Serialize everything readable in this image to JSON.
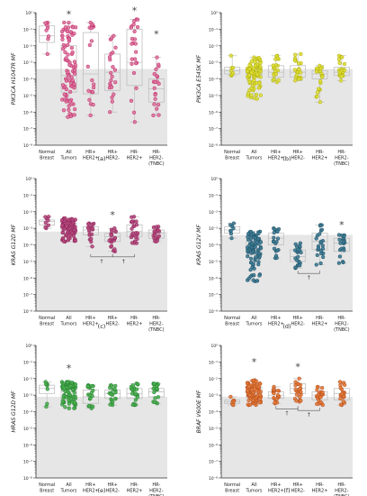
{
  "categories": [
    [
      "Normal",
      "Breast"
    ],
    [
      "All",
      "Tumors"
    ],
    [
      "HR+",
      "HER2+"
    ],
    [
      "HR+",
      "HER2-"
    ],
    [
      "HR-",
      "HER2+"
    ],
    [
      "HR-",
      "HER2-",
      "(TNBC)"
    ]
  ],
  "y_tick_labels": [
    "10⁻⁸",
    "10⁻⁷",
    "10⁻⁶",
    "10⁻⁵",
    "10⁻⁴",
    "10⁻³",
    "10⁻²",
    "10⁻¹",
    "10⁰"
  ],
  "marker_labels": {
    "star": "*",
    "dagger": "†"
  },
  "colors": {
    "shade": "#e6e6e6",
    "box": "#bfbfbf",
    "axis": "#333333",
    "text": "#222222"
  },
  "chart_data": [
    {
      "type": "scatter",
      "panel": "(a)",
      "ylabel": "PIK3CA H1047R MF",
      "ylog": true,
      "ylim": [
        1e-08,
        1
      ],
      "color": "#c2185b",
      "fill": "#d9769e",
      "shade_top": -3.4,
      "categories": [
        "Normal Breast",
        "All Tumors",
        "HR+ HER2+",
        "HR+ HER2-",
        "HR- HER2+",
        "HR- HER2- (TNBC)"
      ],
      "boxes_log10": [
        [
          -2.5,
          -1.8,
          -1.4,
          -0.8,
          -0.6,
          -0.4
        ],
        [
          -6.3,
          -4.8,
          -3.8,
          -2.0,
          -0.6,
          -0.4
        ],
        [
          -6.2,
          -4.9,
          -3.7,
          -1.2,
          -0.6,
          -0.4
        ],
        [
          -6.0,
          -4.7,
          -3.6,
          -2.5,
          -1.4,
          -0.6
        ],
        [
          -6.6,
          -4.4,
          -3.0,
          -1.0,
          -0.4,
          -0.2
        ],
        [
          -6.2,
          -5.4,
          -4.6,
          -4.0,
          -2.7,
          -1.6
        ]
      ],
      "n_points": [
        9,
        90,
        20,
        22,
        24,
        20
      ],
      "stars": [
        1,
        4,
        5
      ],
      "daggers": []
    },
    {
      "type": "scatter",
      "panel": "(b)",
      "ylabel": "PIK3CA E545K MF",
      "ylog": true,
      "ylim": [
        1e-08,
        1
      ],
      "color": "#a8a800",
      "fill": "#dede3a",
      "shade_top": -3.4,
      "categories": [
        "Normal Breast",
        "All Tumors",
        "HR+ HER2+",
        "HR+ HER2-",
        "HR- HER2+",
        "HR- HER2- (TNBC)"
      ],
      "boxes_log10": [
        [
          -3.8,
          -3.7,
          -3.5,
          -3.3,
          -2.6,
          -2.1
        ],
        [
          -5.2,
          -3.9,
          -3.7,
          -3.3,
          -2.7,
          -0.3
        ],
        [
          -4.2,
          -3.9,
          -3.6,
          -3.2,
          -2.6,
          -0.3
        ],
        [
          -4.1,
          -3.9,
          -3.6,
          -3.2,
          -2.5,
          -0.3
        ],
        [
          -5.4,
          -4.0,
          -3.7,
          -3.5,
          -3.2,
          -0.9
        ],
        [
          -4.1,
          -3.8,
          -3.6,
          -3.3,
          -2.6,
          -1.6
        ]
      ],
      "n_points": [
        8,
        90,
        20,
        22,
        24,
        20
      ],
      "stars": [],
      "daggers": []
    },
    {
      "type": "scatter",
      "panel": "(c)",
      "ylabel": "KRAS G12D MF",
      "ylog": true,
      "ylim": [
        1e-08,
        1
      ],
      "color": "#8e1e55",
      "fill": "#b24a7e",
      "shade_top": -3.2,
      "categories": [
        "Normal Breast",
        "All Tumors",
        "HR+ HER2+",
        "HR+ HER2-",
        "HR- HER2+",
        "HR- HER2- (TNBC)"
      ],
      "boxes_log10": [
        [
          -3.0,
          -2.8,
          -2.6,
          -2.5,
          -2.3,
          -2.1
        ],
        [
          -3.8,
          -3.3,
          -3.0,
          -2.7,
          -2.4,
          -0.8
        ],
        [
          -4.1,
          -3.4,
          -3.1,
          -2.9,
          -2.7,
          -1.8
        ],
        [
          -4.4,
          -3.8,
          -3.5,
          -3.3,
          -3.0,
          -2.5
        ],
        [
          -3.9,
          -3.5,
          -3.2,
          -2.8,
          -2.3,
          -0.8
        ],
        [
          -3.8,
          -3.6,
          -3.3,
          -3.1,
          -2.9,
          -2.7
        ]
      ],
      "n_points": [
        8,
        90,
        20,
        22,
        24,
        20
      ],
      "stars": [
        3
      ],
      "daggers": [
        [
          2,
          3
        ],
        [
          3,
          4
        ]
      ]
    },
    {
      "type": "scatter",
      "panel": "(d)",
      "ylabel": "KRAS G12V MF",
      "ylog": true,
      "ylim": [
        1e-08,
        1
      ],
      "color": "#1a4d61",
      "fill": "#3d7a93",
      "shade_top": -3.4,
      "categories": [
        "Normal Breast",
        "All Tumors",
        "HR+ HER2+",
        "HR+ HER2-",
        "HR- HER2+",
        "HR- HER2- (TNBC)"
      ],
      "boxes_log10": [
        [
          -3.6,
          -3.3,
          -3.1,
          -2.9,
          -2.7,
          -2.6
        ],
        [
          -6.2,
          -4.6,
          -4.2,
          -3.7,
          -3.2,
          -1.8
        ],
        [
          -4.8,
          -4.0,
          -3.6,
          -3.3,
          -3.0,
          -2.5
        ],
        [
          -5.4,
          -5.0,
          -4.7,
          -4.3,
          -3.9,
          -3.4
        ],
        [
          -5.2,
          -4.3,
          -3.8,
          -3.3,
          -2.8,
          -2.3
        ],
        [
          -5.1,
          -4.4,
          -3.9,
          -3.6,
          -3.4,
          -3.1
        ]
      ],
      "n_points": [
        8,
        90,
        20,
        22,
        24,
        20
      ],
      "stars": [
        5
      ],
      "daggers": [
        [
          3,
          4
        ]
      ]
    },
    {
      "type": "scatter",
      "panel": "(e)",
      "ylabel": "HRAS G12D MF",
      "ylog": true,
      "ylim": [
        1e-08,
        1
      ],
      "color": "#1e7a2e",
      "fill": "#4caf50",
      "shade_top": -3.1,
      "categories": [
        "Normal Breast",
        "All Tumors",
        "HR+ HER2+",
        "HR+ HER2-",
        "HR- HER2+",
        "HR- HER2- (TNBC)"
      ],
      "boxes_log10": [
        [
          -3.7,
          -2.9,
          -2.6,
          -2.4,
          -2.2,
          -1.9
        ],
        [
          -3.8,
          -3.3,
          -2.8,
          -2.5,
          -2.2,
          -1.7
        ],
        [
          -3.8,
          -3.5,
          -3.1,
          -2.7,
          -2.4,
          -2.1
        ],
        [
          -3.6,
          -3.2,
          -2.9,
          -2.7,
          -2.4,
          -1.8
        ],
        [
          -3.6,
          -3.2,
          -2.9,
          -2.6,
          -2.3,
          -2.0
        ],
        [
          -3.5,
          -3.1,
          -2.8,
          -2.6,
          -2.3,
          -2.0
        ]
      ],
      "n_points": [
        8,
        90,
        20,
        22,
        24,
        20
      ],
      "stars": [
        1
      ],
      "daggers": []
    },
    {
      "type": "scatter",
      "panel": "(f)",
      "ylabel": "BRAF V600E MF",
      "ylog": true,
      "ylim": [
        1e-08,
        1
      ],
      "color": "#b5471a",
      "fill": "#e07b39",
      "shade_top": -3.1,
      "categories": [
        "Normal Breast",
        "All Tumors",
        "HR+ HER2+",
        "HR+ HER2-",
        "HR- HER2+",
        "HR- HER2- (TNBC)"
      ],
      "boxes_log10": [
        [
          -3.6,
          -3.5,
          -3.4,
          -3.3,
          -3.1,
          -1.9
        ],
        [
          -3.6,
          -3.2,
          -2.9,
          -2.5,
          -2.1,
          -1.3
        ],
        [
          -3.5,
          -3.2,
          -3.0,
          -2.8,
          -2.5,
          -2.1
        ],
        [
          -3.4,
          -2.9,
          -2.6,
          -2.3,
          -2.0,
          -1.6
        ],
        [
          -3.6,
          -3.3,
          -3.0,
          -2.8,
          -2.5,
          -2.1
        ],
        [
          -3.6,
          -3.3,
          -2.9,
          -2.6,
          -2.2,
          -1.4
        ]
      ],
      "n_points": [
        8,
        90,
        20,
        22,
        24,
        20
      ],
      "stars": [
        1,
        3
      ],
      "daggers": [
        [
          2,
          3
        ],
        [
          3,
          4
        ]
      ]
    }
  ]
}
